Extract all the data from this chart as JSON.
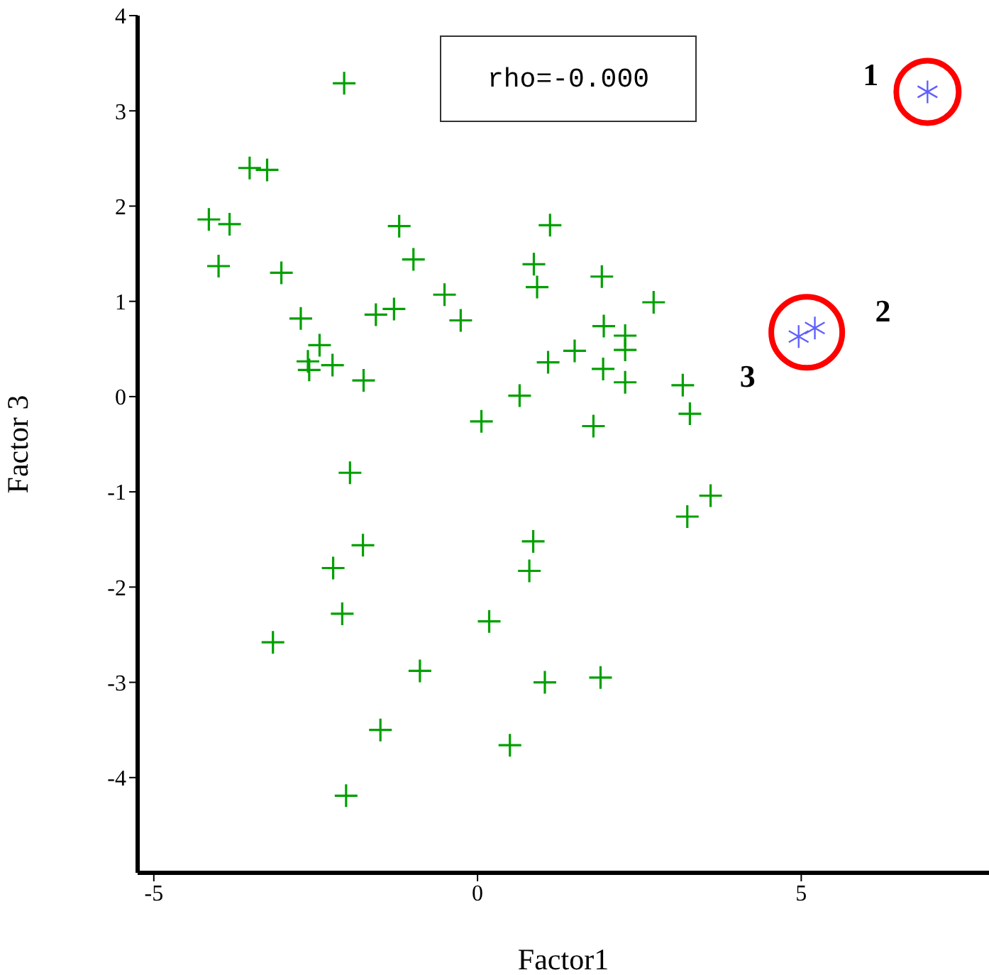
{
  "chart_data": {
    "type": "scatter",
    "xlabel": "Factor1",
    "ylabel": "Factor 3",
    "xlim": [
      -5.25,
      7.9
    ],
    "ylim": [
      -5,
      4
    ],
    "xticks": [
      -5,
      0,
      5
    ],
    "yticks": [
      -4,
      -3,
      -2,
      -1,
      0,
      1,
      2,
      3,
      4
    ],
    "grid": false,
    "legend": false,
    "annotations": [
      "rho=-0.000",
      {
        "text": "1",
        "x": 6.95,
        "y": 3.2
      },
      {
        "text": "2",
        "x": 5.21,
        "y": 0.72
      },
      {
        "text": "3",
        "x": 4.96,
        "y": 0.63
      }
    ],
    "series": [
      {
        "color": "#00a000",
        "marker": "cross",
        "x": [
          -2.06,
          -3.52,
          -3.25,
          -4.15,
          -3.83,
          -4.0,
          -3.03,
          -1.21,
          -0.99,
          -0.51,
          -2.73,
          -2.44,
          -2.62,
          -2.6,
          -2.24,
          -1.76,
          -1.57,
          -1.29,
          -0.26,
          1.12,
          0.87,
          0.92,
          1.92,
          2.72,
          1.95,
          2.28,
          2.28,
          1.5,
          1.09,
          1.94,
          2.28,
          3.17,
          0.65,
          0.06,
          1.79,
          3.28,
          -1.97,
          -1.77,
          -2.23,
          -2.09,
          -3.16,
          -0.89,
          -1.5,
          -2.03,
          3.6,
          3.24,
          0.86,
          0.8,
          0.18,
          1.04,
          1.9,
          0.5
        ],
        "values": [
          3.29,
          2.4,
          2.38,
          1.86,
          1.81,
          1.37,
          1.3,
          1.79,
          1.44,
          1.07,
          0.82,
          0.54,
          0.37,
          0.28,
          0.33,
          0.17,
          0.86,
          0.92,
          0.8,
          1.8,
          1.39,
          1.15,
          1.26,
          0.99,
          0.74,
          0.64,
          0.49,
          0.48,
          0.36,
          0.29,
          0.15,
          0.12,
          0.01,
          -0.26,
          -0.31,
          -0.18,
          -0.8,
          -1.56,
          -1.8,
          -2.28,
          -2.58,
          -2.88,
          -3.5,
          -4.19,
          -1.04,
          -1.26,
          -1.52,
          -1.83,
          -2.36,
          -3.0,
          -2.95,
          -3.66
        ]
      },
      {
        "color": "#6060ff",
        "x": [
          6.95,
          5.21,
          4.96
        ],
        "values": [
          3.2,
          0.72,
          0.63
        ]
      }
    ]
  }
}
